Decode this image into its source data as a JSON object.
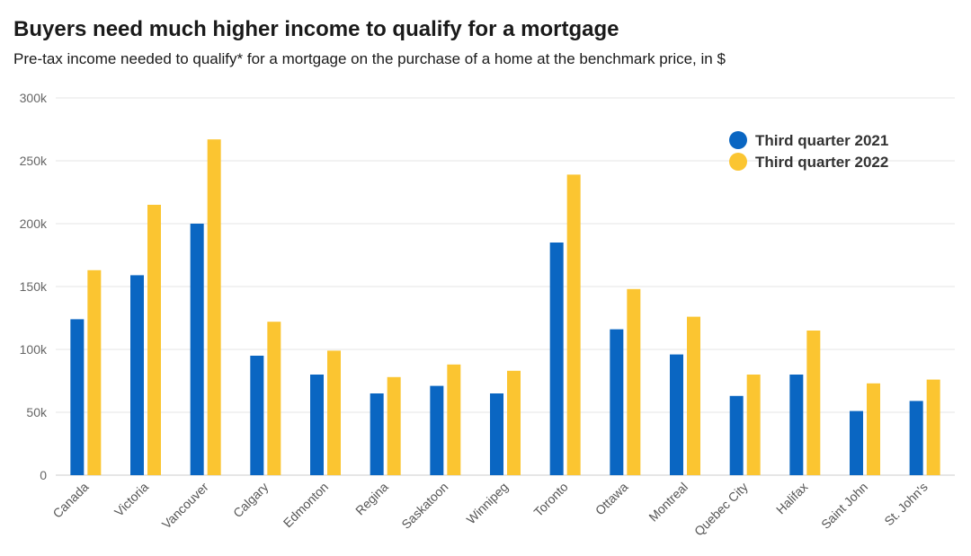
{
  "chart_data": {
    "type": "bar",
    "title": "Buyers need much higher income to qualify for a mortgage",
    "subtitle": "Pre-tax income needed to qualify* for a mortgage on the purchase of a home at the benchmark price, in $",
    "xlabel": "",
    "ylabel": "",
    "ylim": [
      0,
      300000
    ],
    "yticks": [
      0,
      50000,
      100000,
      150000,
      200000,
      250000,
      300000
    ],
    "ytick_labels": [
      "0",
      "50k",
      "100k",
      "150k",
      "200k",
      "250k",
      "300k"
    ],
    "grid": true,
    "legend_position": "top-right",
    "categories": [
      "Canada",
      "Victoria",
      "Vancouver",
      "Calgary",
      "Edmonton",
      "Regina",
      "Saskatoon",
      "Winnipeg",
      "Toronto",
      "Ottawa",
      "Montreal",
      "Quebec City",
      "Halifax",
      "Saint John",
      "St. John's"
    ],
    "series": [
      {
        "name": "Third quarter 2021",
        "color": "#0a66c2",
        "values": [
          124000,
          159000,
          200000,
          95000,
          80000,
          65000,
          71000,
          65000,
          185000,
          116000,
          96000,
          63000,
          80000,
          51000,
          59000
        ]
      },
      {
        "name": "Third quarter 2022",
        "color": "#fbc531",
        "values": [
          163000,
          215000,
          267000,
          122000,
          99000,
          78000,
          88000,
          83000,
          239000,
          148000,
          126000,
          80000,
          115000,
          73000,
          76000
        ]
      }
    ]
  }
}
